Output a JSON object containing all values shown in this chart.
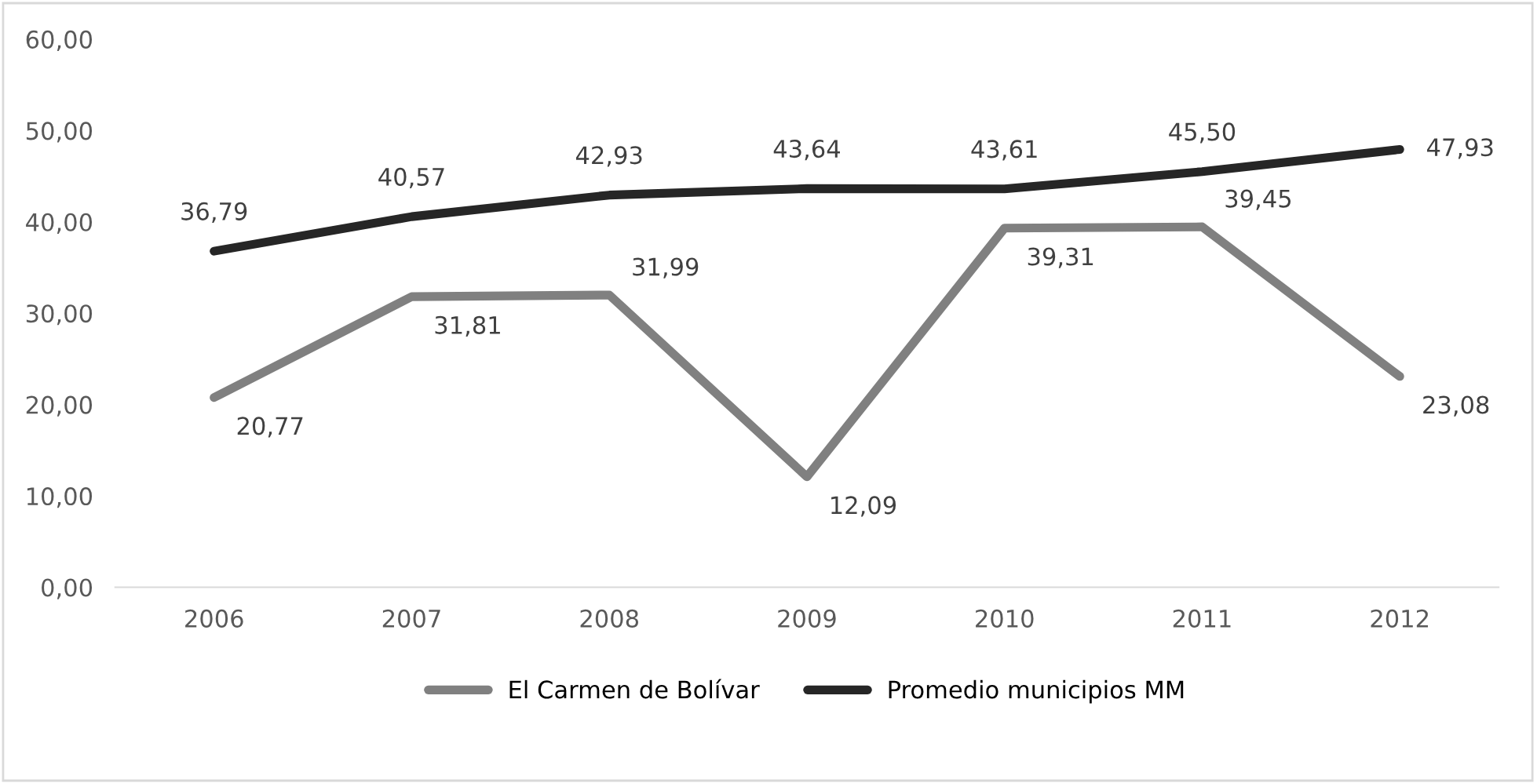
{
  "chart_data": {
    "type": "line",
    "categories": [
      "2006",
      "2007",
      "2008",
      "2009",
      "2010",
      "2011",
      "2012"
    ],
    "series": [
      {
        "name": "El Carmen de Bolívar",
        "color": "#808080",
        "values": [
          20.77,
          31.81,
          31.99,
          12.09,
          39.31,
          39.45,
          23.08
        ],
        "value_labels": [
          "20,77",
          "31,81",
          "31,99",
          "12,09",
          "39,31",
          "39,45",
          "23,08"
        ]
      },
      {
        "name": "Promedio municipios MM",
        "color": "#262626",
        "values": [
          36.79,
          40.57,
          42.93,
          43.64,
          43.61,
          45.5,
          47.93
        ],
        "value_labels": [
          "36,79",
          "40,57",
          "42,93",
          "43,64",
          "43,61",
          "45,50",
          "47,93"
        ]
      }
    ],
    "ylim": [
      0,
      60
    ],
    "yticks": [
      {
        "value": 0,
        "label": "0,00"
      },
      {
        "value": 10,
        "label": "10,00"
      },
      {
        "value": 20,
        "label": "20,00"
      },
      {
        "value": 30,
        "label": "30,00"
      },
      {
        "value": 40,
        "label": "40,00"
      },
      {
        "value": 50,
        "label": "50,00"
      },
      {
        "value": 60,
        "label": "60,00"
      }
    ],
    "grid": false,
    "legend": "bottom",
    "marker": "none",
    "line_style": "solid"
  }
}
